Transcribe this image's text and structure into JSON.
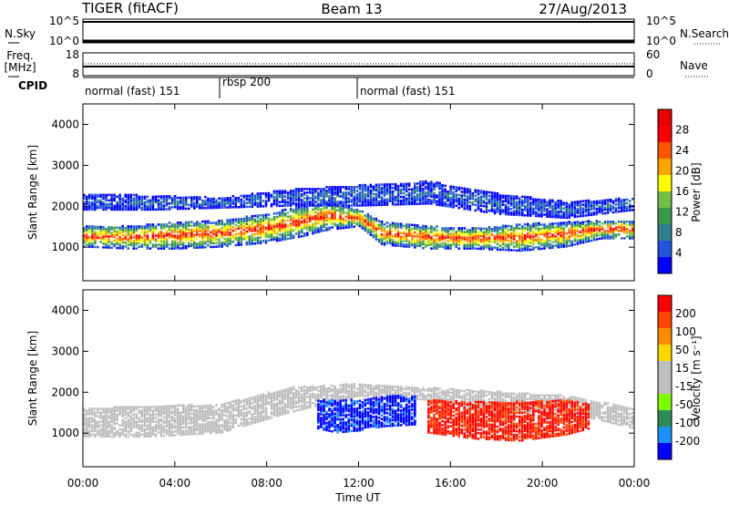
{
  "header": {
    "station": "TIGER (fitACF)",
    "beam": "Beam 13",
    "date": "27/Aug/2013"
  },
  "aux_panels": {
    "nsky": {
      "label": "N.Sky",
      "ticks": [
        "10^5",
        "10^0"
      ]
    },
    "nsearch": {
      "label": "N.Search",
      "ticks": [
        "10^5",
        "10^0"
      ]
    },
    "freq": {
      "label": "Freq.",
      "unit": "[MHz]",
      "ticks": [
        "18",
        "8"
      ]
    },
    "nave": {
      "label": "Nave",
      "ticks": [
        "60",
        "0"
      ]
    },
    "cpid": {
      "label": "CPID",
      "segments": [
        {
          "name": "normal (fast) 151",
          "start_h": 0,
          "end_h": 6
        },
        {
          "name": "rbsp 200",
          "start_h": 6,
          "end_h": 12
        },
        {
          "name": "normal (fast) 151",
          "start_h": 12,
          "end_h": 24
        }
      ]
    }
  },
  "colors": {
    "power_scale": [
      "#0000ff",
      "#2255dd",
      "#2f7f8f",
      "#3a9a4a",
      "#74bf45",
      "#ffff00",
      "#ffa500",
      "#ff5500",
      "#ff0000",
      "#e60000"
    ],
    "velocity_scale": [
      "#0000ff",
      "#1e90ff",
      "#2e8b57",
      "#7cfc00",
      "#bebebe",
      "#bebebe",
      "#ffd700",
      "#ff8c00",
      "#ff4500",
      "#ff0000"
    ]
  },
  "chart_data": [
    {
      "type": "heatmap",
      "title": "",
      "xlabel": "",
      "ylabel": "Slant Range [km]",
      "xlim": [
        0,
        24
      ],
      "ylim": [
        180,
        4500
      ],
      "y_ticks": [
        "1000",
        "2000",
        "3000",
        "4000"
      ],
      "colorbar": {
        "label": "Power [dB]",
        "ticks": [
          "28",
          "24",
          "20",
          "16",
          "12",
          "8",
          "4"
        ]
      },
      "bands": [
        {
          "name": "main",
          "x": [
            0,
            2,
            4,
            6,
            8,
            9.5,
            10.5,
            12,
            13,
            15,
            17,
            19,
            21,
            22.5,
            24
          ],
          "lo": [
            1000,
            950,
            950,
            1000,
            1100,
            1250,
            1400,
            1500,
            1050,
            950,
            950,
            900,
            1000,
            1200,
            1200
          ],
          "hi": [
            1500,
            1500,
            1600,
            1650,
            1800,
            2000,
            2100,
            1900,
            1600,
            1500,
            1450,
            1550,
            1600,
            1650,
            1650
          ],
          "level": 0.85
        },
        {
          "name": "upper",
          "x": [
            0,
            3,
            6,
            9,
            12,
            15,
            18,
            21,
            24
          ],
          "lo": [
            1900,
            1900,
            1950,
            2000,
            2000,
            2050,
            1800,
            1700,
            1900
          ],
          "hi": [
            2300,
            2250,
            2200,
            2400,
            2500,
            2600,
            2300,
            2100,
            2200
          ],
          "level": 0.2
        }
      ]
    },
    {
      "type": "heatmap",
      "title": "",
      "xlabel": "Time UT",
      "ylabel": "Slant Range [km]",
      "xlim": [
        0,
        24
      ],
      "ylim": [
        180,
        4500
      ],
      "x_ticks": [
        "00:00",
        "04:00",
        "08:00",
        "12:00",
        "16:00",
        "20:00",
        "00:00"
      ],
      "y_ticks": [
        "1000",
        "2000",
        "3000",
        "4000"
      ],
      "colorbar": {
        "label": "Velocity [m s⁻¹]",
        "ticks": [
          "200",
          "100",
          "50",
          "15",
          "-15",
          "-50",
          "-100",
          "-200"
        ]
      },
      "bands": [
        {
          "name": "ground",
          "x": [
            0,
            3,
            6,
            9,
            12,
            15,
            18,
            21,
            24
          ],
          "lo": [
            900,
            900,
            1000,
            1500,
            1900,
            1800,
            1500,
            1500,
            1100
          ],
          "hi": [
            1600,
            1650,
            1700,
            2100,
            2200,
            2100,
            2000,
            1900,
            1600
          ],
          "level": 0.0
        },
        {
          "name": "toward",
          "x": [
            10.2,
            11,
            12,
            13,
            14.5
          ],
          "lo": [
            1100,
            1000,
            1050,
            1150,
            1200
          ],
          "hi": [
            1800,
            1800,
            1800,
            1900,
            1900
          ],
          "level": 0.9
        },
        {
          "name": "away",
          "x": [
            15,
            17,
            19,
            21,
            22
          ],
          "lo": [
            1000,
            850,
            800,
            950,
            1100
          ],
          "hi": [
            1800,
            1750,
            1750,
            1800,
            1700
          ],
          "level": -0.85
        }
      ]
    }
  ]
}
